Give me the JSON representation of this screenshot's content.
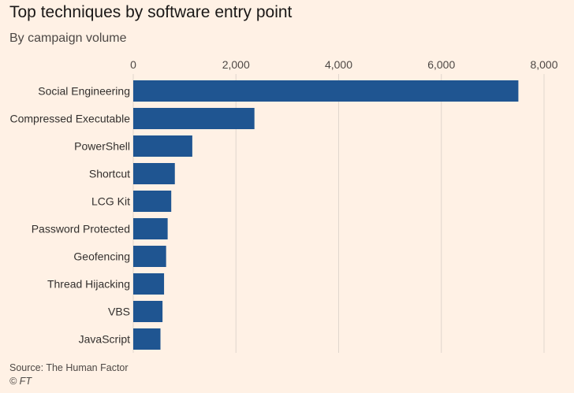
{
  "chart_data": {
    "type": "bar",
    "orientation": "horizontal",
    "title": "Top techniques by software entry point",
    "subtitle": "By campaign volume",
    "categories": [
      "Social Engineering",
      "Compressed Executable",
      "PowerShell",
      "Shortcut",
      "LCG Kit",
      "Password Protected",
      "Geofencing",
      "Thread Hijacking",
      "VBS",
      "JavaScript"
    ],
    "values": [
      7500,
      2360,
      1150,
      810,
      740,
      670,
      640,
      600,
      570,
      530
    ],
    "xlim": [
      0,
      8000
    ],
    "x_ticks": [
      0,
      2000,
      4000,
      6000,
      8000
    ],
    "x_tick_labels": [
      "0",
      "2,000",
      "4,000",
      "6,000",
      "8,000"
    ],
    "x_axis_position": "top",
    "grid": true,
    "bar_color": "#1f5591",
    "grid_color": "#e0d6cd"
  },
  "footer": {
    "source": "Source: The Human Factor",
    "copyright": "© FT"
  }
}
